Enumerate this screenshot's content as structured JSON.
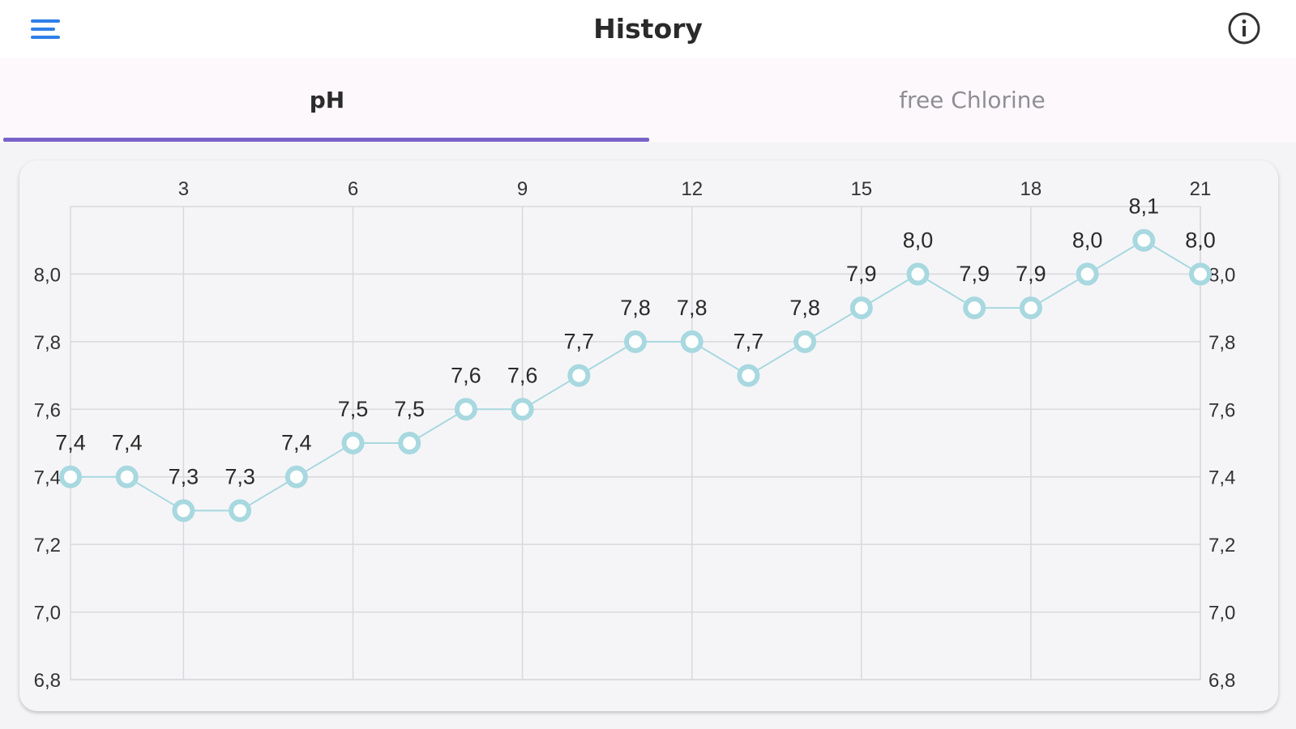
{
  "header": {
    "title": "History",
    "menu_icon": "hamburger-menu-icon",
    "info_icon": "info-circle-icon"
  },
  "tabs": [
    {
      "label": "pH",
      "selected": true
    },
    {
      "label": "free Chlorine",
      "selected": false
    }
  ],
  "colors": {
    "accent": "#7a62c9",
    "series": "#a8d8e0",
    "grid": "#d9d9dd"
  },
  "chart_data": {
    "type": "line",
    "x_ticks": [
      3,
      6,
      9,
      12,
      15,
      18,
      21
    ],
    "x_tick_position": "top",
    "xlim": [
      1,
      21
    ],
    "ylim": [
      6.8,
      8.2
    ],
    "y_ticks": [
      "6,8",
      "7,0",
      "7,2",
      "7,4",
      "7,6",
      "7,8",
      "8,0"
    ],
    "y_tick_values": [
      6.8,
      7.0,
      7.2,
      7.4,
      7.6,
      7.8,
      8.0
    ],
    "y_axis_sides": [
      "left",
      "right"
    ],
    "grid": true,
    "x": [
      1,
      2,
      3,
      4,
      5,
      6,
      7,
      8,
      9,
      10,
      11,
      12,
      13,
      14,
      15,
      16,
      17,
      18,
      19,
      20,
      21
    ],
    "values": [
      7.4,
      7.4,
      7.3,
      7.3,
      7.4,
      7.5,
      7.5,
      7.6,
      7.6,
      7.7,
      7.8,
      7.8,
      7.7,
      7.8,
      7.9,
      8.0,
      7.9,
      7.9,
      8.0,
      8.1,
      8.0
    ],
    "labels": [
      "7,4",
      "7,4",
      "7,3",
      "7,3",
      "7,4",
      "7,5",
      "7,5",
      "7,6",
      "7,6",
      "7,7",
      "7,8",
      "7,8",
      "7,7",
      "7,8",
      "7,9",
      "8,0",
      "7,9",
      "7,9",
      "8,0",
      "8,1",
      "8,0"
    ]
  }
}
